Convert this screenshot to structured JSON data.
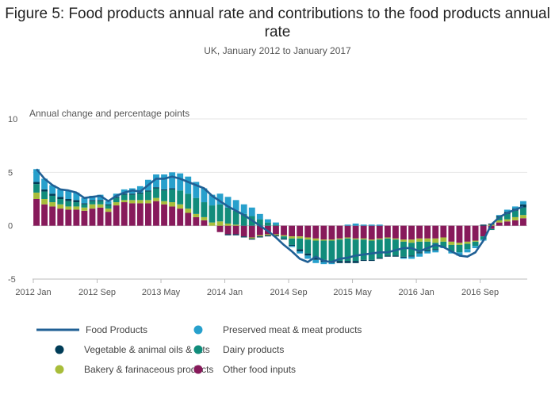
{
  "title": "Figure 5: Food products annual rate and contributions to the food products annual rate",
  "subtitle": "UK, January 2012 to January 2017",
  "chart_data": {
    "type": "bar",
    "stacked": true,
    "ylabel": "Annual change and percentage points",
    "ylim": [
      -5,
      10
    ],
    "yticks": [
      -5,
      0,
      5,
      10
    ],
    "x_tick_labels": [
      {
        "index": 0,
        "label": "2012 Jan"
      },
      {
        "index": 8,
        "label": "2012 Sep"
      },
      {
        "index": 16,
        "label": "2013 May"
      },
      {
        "index": 24,
        "label": "2014 Jan"
      },
      {
        "index": 32,
        "label": "2014 Sep"
      },
      {
        "index": 40,
        "label": "2015 May"
      },
      {
        "index": 48,
        "label": "2016 Jan"
      },
      {
        "index": 56,
        "label": "2016 Sep"
      }
    ],
    "grid": true,
    "legend_position": "bottom",
    "series": [
      {
        "name": "Other food inputs",
        "color": "#871a5b",
        "values": [
          2.5,
          2.0,
          1.8,
          1.6,
          1.5,
          1.5,
          1.4,
          1.6,
          1.7,
          1.3,
          1.9,
          2.2,
          2.1,
          2.1,
          2.1,
          2.3,
          2.0,
          1.8,
          1.6,
          1.2,
          0.8,
          0.5,
          0.0,
          -0.6,
          -0.8,
          -0.8,
          -1.0,
          -1.1,
          -0.9,
          -0.8,
          -0.8,
          -0.9,
          -1.0,
          -1.0,
          -1.1,
          -1.2,
          -1.3,
          -1.3,
          -1.2,
          -1.1,
          -1.2,
          -1.2,
          -1.3,
          -1.2,
          -1.1,
          -1.2,
          -1.3,
          -1.3,
          -1.2,
          -1.2,
          -1.2,
          -1.1,
          -1.5,
          -1.6,
          -1.5,
          -1.4,
          -1.0,
          -0.3,
          0.3,
          0.4,
          0.5,
          0.7
        ]
      },
      {
        "name": "Bakery & farinaceous products",
        "color": "#a8bd3a",
        "values": [
          0.6,
          0.5,
          0.4,
          0.4,
          0.3,
          0.3,
          0.3,
          0.4,
          0.3,
          0.3,
          0.3,
          0.2,
          0.3,
          0.3,
          0.3,
          0.3,
          0.3,
          0.4,
          0.4,
          0.4,
          0.3,
          0.3,
          0.3,
          0.4,
          0.2,
          0.1,
          0.0,
          -0.1,
          -0.1,
          -0.1,
          -0.1,
          -0.1,
          -0.2,
          -0.2,
          -0.2,
          -0.2,
          -0.1,
          -0.1,
          -0.1,
          -0.1,
          -0.1,
          -0.1,
          -0.1,
          -0.1,
          -0.1,
          -0.1,
          -0.2,
          -0.3,
          -0.3,
          -0.3,
          -0.4,
          -0.4,
          -0.3,
          -0.2,
          -0.2,
          -0.1,
          0.0,
          0.1,
          0.2,
          0.2,
          0.3,
          0.3
        ]
      },
      {
        "name": "Dairy products",
        "color": "#118c7b",
        "values": [
          0.8,
          0.7,
          0.6,
          0.5,
          0.5,
          0.4,
          0.3,
          0.3,
          0.3,
          0.3,
          0.4,
          0.5,
          0.5,
          0.6,
          0.8,
          0.9,
          1.0,
          1.2,
          1.3,
          1.4,
          1.5,
          1.4,
          1.6,
          1.6,
          1.5,
          1.3,
          1.1,
          0.9,
          0.6,
          0.3,
          0.1,
          -0.2,
          -0.6,
          -1.0,
          -1.3,
          -1.6,
          -1.8,
          -1.9,
          -2.0,
          -2.1,
          -2.0,
          -1.9,
          -1.8,
          -1.7,
          -1.6,
          -1.5,
          -1.4,
          -1.2,
          -1.0,
          -0.8,
          -0.6,
          -0.5,
          -0.6,
          -0.7,
          -0.5,
          -0.4,
          -0.3,
          -0.1,
          0.3,
          0.5,
          0.6,
          0.7
        ]
      },
      {
        "name": "Vegetable & animal oils & fats",
        "color": "#003c57",
        "values": [
          0.2,
          0.2,
          0.2,
          0.2,
          0.2,
          0.2,
          0.1,
          0.1,
          0.1,
          0.1,
          0.1,
          0.1,
          0.1,
          0.1,
          0.1,
          0.1,
          0.1,
          0.1,
          0.0,
          0.0,
          0.0,
          0.0,
          0.0,
          0.0,
          -0.1,
          -0.1,
          -0.1,
          -0.1,
          -0.1,
          -0.1,
          -0.1,
          -0.1,
          -0.1,
          -0.2,
          -0.2,
          -0.2,
          -0.2,
          -0.2,
          -0.2,
          -0.2,
          -0.2,
          -0.1,
          -0.1,
          -0.1,
          -0.1,
          -0.1,
          -0.1,
          -0.1,
          -0.1,
          -0.1,
          -0.1,
          0.0,
          0.0,
          0.0,
          0.0,
          0.0,
          0.1,
          0.1,
          0.1,
          0.2,
          0.2,
          0.3
        ]
      },
      {
        "name": "Preserved meat & meat products",
        "color": "#27a0cc",
        "values": [
          1.2,
          1.0,
          0.8,
          0.7,
          0.8,
          0.7,
          0.5,
          0.4,
          0.5,
          0.3,
          0.3,
          0.4,
          0.5,
          0.6,
          1.0,
          1.2,
          1.4,
          1.5,
          1.6,
          1.6,
          1.5,
          1.3,
          1.0,
          1.0,
          1.0,
          1.0,
          0.9,
          0.8,
          0.5,
          0.3,
          0.2,
          0.0,
          -0.1,
          -0.2,
          -0.3,
          -0.3,
          -0.2,
          -0.1,
          0.0,
          0.1,
          0.2,
          0.1,
          0.1,
          0.1,
          0.0,
          0.0,
          -0.1,
          -0.2,
          -0.3,
          -0.2,
          -0.2,
          -0.1,
          -0.2,
          -0.3,
          -0.3,
          -0.2,
          -0.1,
          0.0,
          0.1,
          0.2,
          0.2,
          0.3
        ]
      },
      {
        "name": "Food Products",
        "type": "line",
        "color": "#206095",
        "values": [
          5.3,
          4.4,
          3.8,
          3.4,
          3.3,
          3.1,
          2.6,
          2.7,
          2.8,
          2.3,
          2.8,
          3.1,
          3.3,
          3.2,
          3.8,
          4.4,
          4.4,
          4.6,
          4.4,
          4.1,
          3.8,
          3.5,
          2.8,
          2.3,
          1.8,
          1.4,
          1.0,
          0.5,
          0.0,
          -0.5,
          -1.1,
          -1.8,
          -2.4,
          -3.1,
          -3.4,
          -2.9,
          -3.3,
          -3.4,
          -3.1,
          -3.0,
          -2.8,
          -2.7,
          -2.6,
          -2.5,
          -2.5,
          -2.3,
          -2.1,
          -2.1,
          -2.4,
          -2.1,
          -1.8,
          -2.0,
          -2.4,
          -2.8,
          -2.9,
          -2.5,
          -1.4,
          0.1,
          0.8,
          1.2,
          1.5,
          1.8
        ]
      }
    ]
  },
  "legend": [
    {
      "label": "Food Products",
      "marker": "line",
      "color": "#206095"
    },
    {
      "label": "Preserved meat & meat products",
      "marker": "dot",
      "color": "#27a0cc"
    },
    {
      "label": "Vegetable & animal oils & fats",
      "marker": "dot",
      "color": "#003c57"
    },
    {
      "label": "Dairy products",
      "marker": "dot",
      "color": "#118c7b"
    },
    {
      "label": "Bakery & farinaceous products",
      "marker": "dot",
      "color": "#a8bd3a"
    },
    {
      "label": "Other food inputs",
      "marker": "dot",
      "color": "#871a5b"
    }
  ]
}
